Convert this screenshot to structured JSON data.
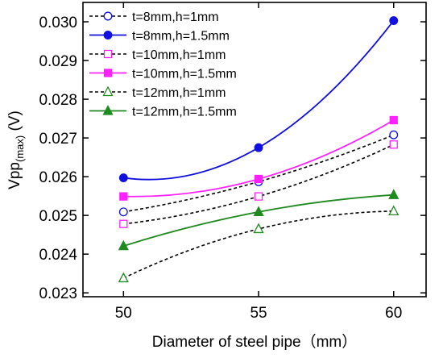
{
  "chart_data": {
    "type": "line",
    "xlabel": "Diameter of steel pipe（mm）",
    "ylabel_main": "Vpp",
    "ylabel_sub": "(max)",
    "ylabel_unit": " (V)",
    "x": [
      50,
      55,
      60
    ],
    "xlim": [
      48.5,
      61.2
    ],
    "ylim": [
      0.0229,
      0.0305
    ],
    "xticks": [
      "50",
      "55",
      "60"
    ],
    "yticks": [
      "0.023",
      "0.024",
      "0.025",
      "0.026",
      "0.027",
      "0.028",
      "0.029",
      "0.030"
    ],
    "legend_position": "top-left",
    "series": [
      {
        "name": "t=8mm,h=1mm",
        "values": [
          0.02509,
          0.02587,
          0.02708
        ],
        "color": "#1010e0",
        "marker": "circle",
        "filled": false,
        "dashed": true
      },
      {
        "name": "t=8mm,h=1.5mm",
        "values": [
          0.02597,
          0.02675,
          0.03003
        ],
        "color": "#1010e0",
        "marker": "circle",
        "filled": true,
        "dashed": false
      },
      {
        "name": "t=10mm,h=1mm",
        "values": [
          0.02478,
          0.02549,
          0.02683
        ],
        "color": "#ff20ff",
        "marker": "square",
        "filled": false,
        "dashed": true
      },
      {
        "name": "t=10mm,h=1.5mm",
        "values": [
          0.02549,
          0.02594,
          0.02746
        ],
        "color": "#ff20ff",
        "marker": "square",
        "filled": true,
        "dashed": false
      },
      {
        "name": "t=12mm,h=1mm",
        "values": [
          0.02338,
          0.02465,
          0.02511
        ],
        "color": "#1f8a1f",
        "marker": "triangle",
        "filled": false,
        "dashed": true
      },
      {
        "name": "t=12mm,h=1.5mm",
        "values": [
          0.02421,
          0.02509,
          0.02553
        ],
        "color": "#1f8a1f",
        "marker": "triangle",
        "filled": true,
        "dashed": false
      }
    ]
  }
}
